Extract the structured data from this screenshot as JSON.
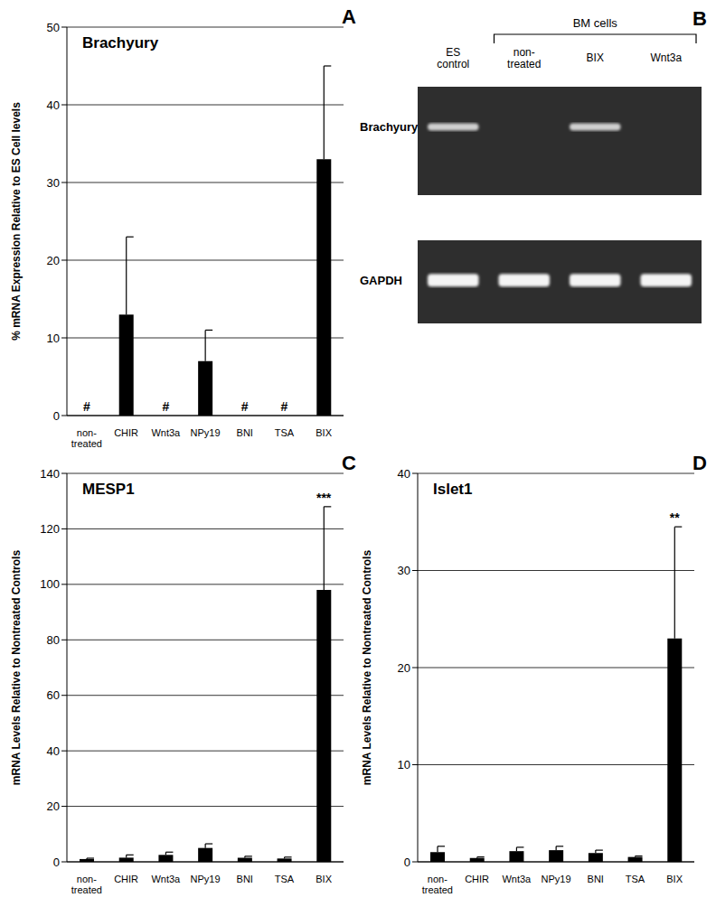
{
  "chart_data": [
    {
      "panel": "A",
      "type": "bar",
      "title": "Brachyury",
      "y_label": "% mRNA Expression Relative to ES Cell levels",
      "categories": [
        "non-treated",
        "CHIR",
        "Wnt3a",
        "NPy19",
        "BNI",
        "TSA",
        "BIX"
      ],
      "values": [
        null,
        13,
        null,
        7,
        null,
        null,
        33
      ],
      "errors": [
        null,
        10,
        null,
        4,
        null,
        null,
        12
      ],
      "annotations": [
        {
          "category": "non-treated",
          "text": "#"
        },
        {
          "category": "Wnt3a",
          "text": "#"
        },
        {
          "category": "BNI",
          "text": "#"
        },
        {
          "category": "TSA",
          "text": "#"
        }
      ],
      "color": "#000000",
      "ylim": [
        0,
        50
      ],
      "yticks": [
        0,
        10,
        20,
        30,
        40,
        50
      ],
      "grid": true
    },
    {
      "panel": "C",
      "type": "bar",
      "title": "MESP1",
      "y_label": "mRNA Levels Relative to Nontreated Controls",
      "categories": [
        "non-treated",
        "CHIR",
        "Wnt3a",
        "NPy19",
        "BNI",
        "TSA",
        "BIX"
      ],
      "values": [
        1,
        1.5,
        2.5,
        5,
        1.5,
        1.2,
        98
      ],
      "errors": [
        0.3,
        1,
        1,
        1.5,
        0.5,
        0.5,
        30
      ],
      "annotations": [
        {
          "category": "BIX",
          "text": "***"
        }
      ],
      "color": "#000000",
      "ylim": [
        0,
        140
      ],
      "yticks": [
        0,
        20,
        40,
        60,
        80,
        100,
        120,
        140
      ],
      "grid": true
    },
    {
      "panel": "D",
      "type": "bar",
      "title": "Islet1",
      "y_label": "mRNA Levels Relative to Nontreated Controls",
      "categories": [
        "non-treated",
        "CHIR",
        "Wnt3a",
        "NPy19",
        "BNI",
        "TSA",
        "BIX"
      ],
      "values": [
        1,
        0.4,
        1.1,
        1.2,
        0.9,
        0.5,
        23
      ],
      "errors": [
        0.6,
        0.1,
        0.4,
        0.4,
        0.3,
        0.1,
        11.5
      ],
      "annotations": [
        {
          "category": "BIX",
          "text": "**"
        }
      ],
      "color": "#000000",
      "ylim": [
        0,
        40
      ],
      "yticks": [
        0,
        10,
        20,
        30,
        40
      ],
      "grid": true
    }
  ],
  "gel": {
    "panel": "B",
    "group_label": "BM cells",
    "group_lanes": [
      "non-treated",
      "BIX",
      "Wnt3a"
    ],
    "lanes": [
      "ES control",
      "non-treated",
      "BIX",
      "Wnt3a"
    ],
    "rows": [
      {
        "label": "Brachyury",
        "bands": [
          true,
          false,
          true,
          false
        ]
      },
      {
        "label": "GAPDH",
        "bands": [
          true,
          true,
          true,
          true
        ]
      }
    ]
  }
}
